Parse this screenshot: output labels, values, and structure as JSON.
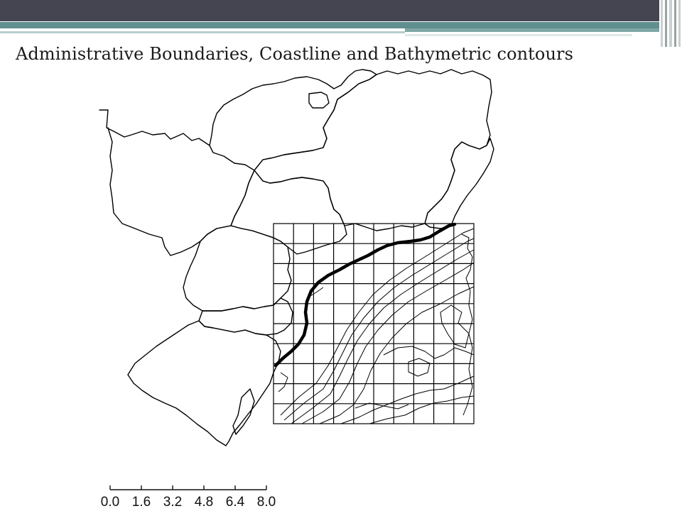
{
  "slide": {
    "title": "Administrative Boundaries, Coastline and Bathymetric contours"
  },
  "map": {
    "layers": [
      "administrative-boundaries",
      "coastline",
      "bathymetric-contours",
      "grid"
    ],
    "grid": {
      "columns": 10,
      "rows": 10
    },
    "colors": {
      "lines": "#000000",
      "background": "#ffffff",
      "header": "#454551",
      "accent": "#5f8f8e"
    },
    "scale_bar": {
      "labels": [
        "0.0",
        "1.6",
        "3.2",
        "4.8",
        "6.4",
        "8.0"
      ]
    }
  }
}
